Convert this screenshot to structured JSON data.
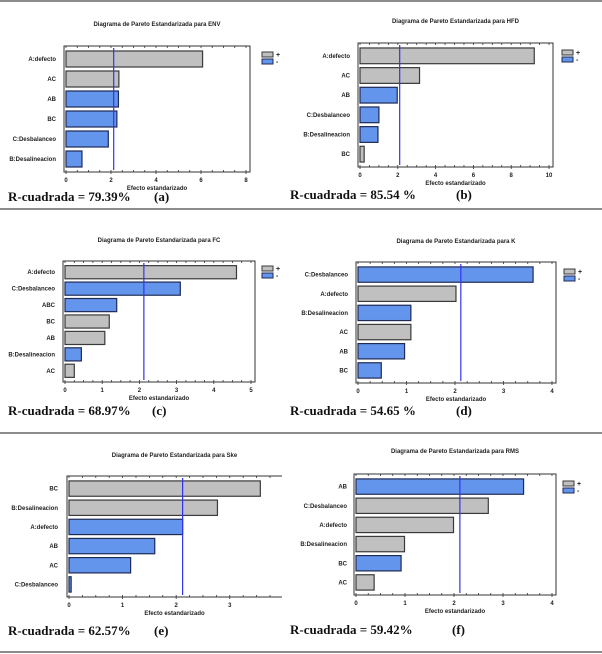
{
  "colors": {
    "positive": "#c0c0c0",
    "negative": "#6495ed",
    "reference_line": "#3333ee",
    "bar_edge": "#404040"
  },
  "chart_data": [
    {
      "id": "a",
      "type": "bar",
      "orientation": "horizontal",
      "title": "Diagrama de Pareto Estandarizada para ENV",
      "xlabel": "Efecto estandarizado",
      "ylabel": "",
      "xlim": [
        0,
        8
      ],
      "xticks": [
        "0",
        "2",
        "4",
        "6",
        "8"
      ],
      "xtick_values": [
        0,
        2,
        4,
        6,
        8
      ],
      "reference_line": 2.12,
      "categories": [
        "A:defecto",
        "AC",
        "AB",
        "BC",
        "C:Desbalanceo",
        "B:Desalineacion"
      ],
      "values": [
        6.07,
        2.35,
        2.33,
        2.26,
        1.88,
        0.71
      ],
      "signs": [
        "+",
        "+",
        "-",
        "-",
        "-",
        "-"
      ],
      "legend": {
        "show": true,
        "position": "top-right",
        "entries": [
          "+",
          "-"
        ]
      },
      "r_squared_text": "R-cuadrada = 79.39%",
      "panel_label": "(a)"
    },
    {
      "id": "b",
      "type": "bar",
      "orientation": "horizontal",
      "title": "Diagrama de Pareto Estandarizada para HFD",
      "xlabel": "Efecto estandarizado",
      "ylabel": "",
      "xlim": [
        0,
        10
      ],
      "xticks": [
        "0",
        "2",
        "4",
        "6",
        "8",
        "10"
      ],
      "xtick_values": [
        0,
        2,
        4,
        6,
        8,
        10
      ],
      "reference_line": 2.1,
      "categories": [
        "A:defecto",
        "AC",
        "AB",
        "C:Desbalanceo",
        "B:Desalineacion",
        "BC"
      ],
      "values": [
        9.22,
        3.15,
        1.97,
        1.0,
        0.95,
        0.22
      ],
      "signs": [
        "+",
        "+",
        "-",
        "-",
        "-",
        "+"
      ],
      "legend": {
        "show": true,
        "position": "top-right",
        "entries": [
          "+",
          "-"
        ]
      },
      "r_squared_text": "R-cuadrada = 85.54 %",
      "panel_label": "(b)"
    },
    {
      "id": "c",
      "type": "bar",
      "orientation": "horizontal",
      "title": "Diagrama de Pareto Estandarizada para FC",
      "xlabel": "Efecto estandarizado",
      "ylabel": "",
      "xlim": [
        0,
        5
      ],
      "xticks": [
        "0",
        "1",
        "2",
        "3",
        "4",
        "5"
      ],
      "xtick_values": [
        0,
        1,
        2,
        3,
        4,
        5
      ],
      "reference_line": 2.12,
      "categories": [
        "A:defecto",
        "C:Desbalanceo",
        "ABC",
        "BC",
        "AB",
        "B:Desalineacion",
        "AC"
      ],
      "values": [
        4.61,
        3.1,
        1.39,
        1.19,
        1.07,
        0.44,
        0.25
      ],
      "signs": [
        "+",
        "-",
        "-",
        "+",
        "+",
        "-",
        "+"
      ],
      "legend": {
        "show": true,
        "position": "top-right",
        "entries": [
          "+",
          "-"
        ]
      },
      "r_squared_text": "R-cuadrada = 68.97%",
      "panel_label": "(c)"
    },
    {
      "id": "d",
      "type": "bar",
      "orientation": "horizontal",
      "title": "Diagrama de Pareto Estandarizada para K",
      "xlabel": "Efecto estandarizado",
      "ylabel": "",
      "xlim": [
        0,
        4
      ],
      "xticks": [
        "0",
        "1",
        "2",
        "3",
        "4"
      ],
      "xtick_values": [
        0,
        1,
        2,
        3,
        4
      ],
      "reference_line": 2.12,
      "categories": [
        "C:Desbalanceo",
        "A:defecto",
        "B:Desalineacion",
        "AC",
        "AB",
        "BC"
      ],
      "values": [
        3.61,
        2.02,
        1.09,
        1.09,
        0.96,
        0.48
      ],
      "signs": [
        "-",
        "+",
        "-",
        "+",
        "-",
        "-"
      ],
      "legend": {
        "show": true,
        "position": "top-right",
        "entries": [
          "+",
          "-"
        ]
      },
      "r_squared_text": "R-cuadrada = 54.65 %",
      "panel_label": "(d)"
    },
    {
      "id": "e",
      "type": "bar",
      "orientation": "horizontal",
      "title": "Diagrama de Pareto Estandarizada para Ske",
      "xlabel": "Efecto estandarizado",
      "ylabel": "",
      "xlim": [
        0,
        3.9
      ],
      "xticks": [
        "0",
        "1",
        "2",
        "3"
      ],
      "xtick_values": [
        0,
        1,
        2,
        3
      ],
      "reference_line": 2.12,
      "categories": [
        "BC",
        "B:Desalineacion",
        "A:defecto",
        "AB",
        "AC",
        "C:Desbalanceo"
      ],
      "values": [
        3.57,
        2.77,
        2.12,
        1.6,
        1.15,
        0.04
      ],
      "signs": [
        "+",
        "+",
        "-",
        "-",
        "-",
        "-"
      ],
      "legend": {
        "show": false,
        "position": "none",
        "entries": []
      },
      "r_squared_text": "R-cuadrada = 62.57%",
      "panel_label": "(e)"
    },
    {
      "id": "f",
      "type": "bar",
      "orientation": "horizontal",
      "title": "Diagrama de Pareto Estandarizada para RMS",
      "xlabel": "Efecto estandarizado",
      "ylabel": "",
      "xlim": [
        0,
        4
      ],
      "xticks": [
        "0",
        "1",
        "2",
        "3",
        "4"
      ],
      "xtick_values": [
        0,
        1,
        2,
        3,
        4
      ],
      "reference_line": 2.12,
      "categories": [
        "AB",
        "C:Desbalanceo",
        "A:defecto",
        "B:Desalineacion",
        "BC",
        "AC"
      ],
      "values": [
        3.42,
        2.7,
        1.99,
        0.99,
        0.92,
        0.37
      ],
      "signs": [
        "-",
        "+",
        "+",
        "+",
        "-",
        "+"
      ],
      "legend": {
        "show": true,
        "position": "top-right",
        "entries": [
          "+",
          "-"
        ]
      },
      "r_squared_text": "R-cuadrada = 59.42%",
      "panel_label": "(f)"
    }
  ]
}
